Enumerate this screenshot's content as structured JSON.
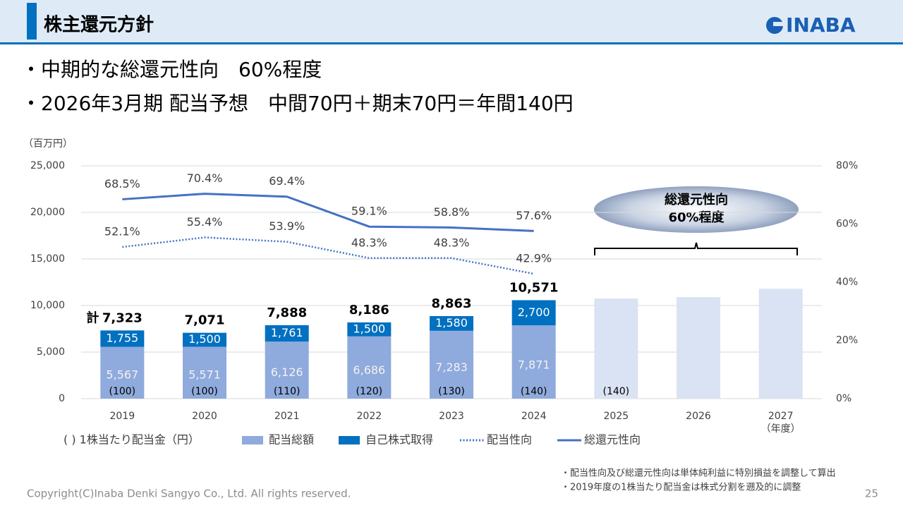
{
  "header": {
    "title": "株主還元方針",
    "logo": "INABA"
  },
  "bullets": [
    "・中期的な総還元性向　60%程度",
    "・2026年3月期 配当予想　中間70円＋期末70円＝年間140円"
  ],
  "chart_data": {
    "type": "bar",
    "unit_label": "（百万円）",
    "categories": [
      "2019",
      "2020",
      "2021",
      "2022",
      "2023",
      "2024",
      "2025",
      "2026",
      "2027"
    ],
    "x_axis_label": "（年度）",
    "ylim": [
      0,
      25000
    ],
    "yticks": [
      0,
      {
        "value": 5000,
        "label": "5,000"
      },
      {
        "value": 10000,
        "label": "10,000"
      },
      {
        "value": 15000,
        "label": "15,000"
      },
      {
        "value": 20000,
        "label": "20,000"
      },
      {
        "value": 25000,
        "label": "25,000"
      }
    ],
    "y2lim": [
      0,
      80
    ],
    "y2ticks": [
      {
        "value": 0,
        "label": "0%"
      },
      {
        "value": 20,
        "label": "20%"
      },
      {
        "value": 40,
        "label": "40%"
      },
      {
        "value": 60,
        "label": "60%"
      },
      {
        "value": 80,
        "label": "80%"
      }
    ],
    "grid": true,
    "series": [
      {
        "name": "配当総額",
        "type": "bar",
        "color": "#8faadc",
        "label_color": "#f2f2f2",
        "values": [
          5567,
          5571,
          6126,
          6686,
          7283,
          7871,
          null,
          null,
          null
        ],
        "value_labels": [
          "5,567",
          "5,571",
          "6,126",
          "6,686",
          "7,283",
          "7,871",
          null,
          null,
          null
        ]
      },
      {
        "name": "自己株式取得",
        "type": "bar",
        "color": "#0070c0",
        "label_color": "#ffffff",
        "values": [
          1755,
          1500,
          1761,
          1500,
          1580,
          2700,
          null,
          null,
          null
        ],
        "value_labels": [
          "1,755",
          "1,500",
          "1,761",
          "1,500",
          "1,580",
          "2,700",
          null,
          null,
          null
        ]
      },
      {
        "type": "bar",
        "color": "#dae3f3",
        "values": [
          null,
          null,
          null,
          null,
          null,
          null,
          10750,
          10900,
          11800
        ]
      },
      {
        "name": "配当性向",
        "type": "line",
        "style": "dotted",
        "axis": "y2",
        "color": "#4472c4",
        "values": [
          52.1,
          55.4,
          53.9,
          48.3,
          48.3,
          42.9,
          null,
          null,
          null
        ],
        "value_labels": [
          "52.1%",
          "55.4%",
          "53.9%",
          "48.3%",
          "48.3%",
          "42.9%",
          null,
          null,
          null
        ]
      },
      {
        "name": "総還元性向",
        "type": "line",
        "style": "solid",
        "axis": "y2",
        "color": "#4472c4",
        "values": [
          68.5,
          70.4,
          69.4,
          59.1,
          58.8,
          57.6,
          null,
          null,
          null
        ],
        "value_labels": [
          "68.5%",
          "70.4%",
          "69.4%",
          "59.1%",
          "58.8%",
          "57.6%",
          null,
          null,
          null
        ]
      }
    ],
    "totals": {
      "prefix": "計",
      "values": [
        7323,
        7071,
        7888,
        8186,
        8863,
        10571
      ],
      "value_labels": [
        "7,323",
        "7,071",
        "7,888",
        "8,186",
        "8,863",
        "10,571"
      ]
    },
    "dividend_per_share": {
      "legend": "( ) 1株当たり配当金（円）",
      "values": [
        100,
        100,
        110,
        120,
        130,
        140,
        140,
        null,
        null
      ],
      "value_labels": [
        "(100)",
        "(100)",
        "(110)",
        "(120)",
        "(130)",
        "(140)",
        "(140)",
        null,
        null
      ]
    },
    "callout": [
      "総還元性向",
      "60%程度"
    ]
  },
  "notes": [
    "・配当性向及び総還元性向は単体純利益に特別損益を調整して算出",
    "・2019年度の1株当たり配当金は株式分割を遡及的に調整"
  ],
  "footer": {
    "copyright": "Copyright(C)Inaba Denki Sangyo Co., Ltd. All rights reserved.",
    "page": "25"
  }
}
